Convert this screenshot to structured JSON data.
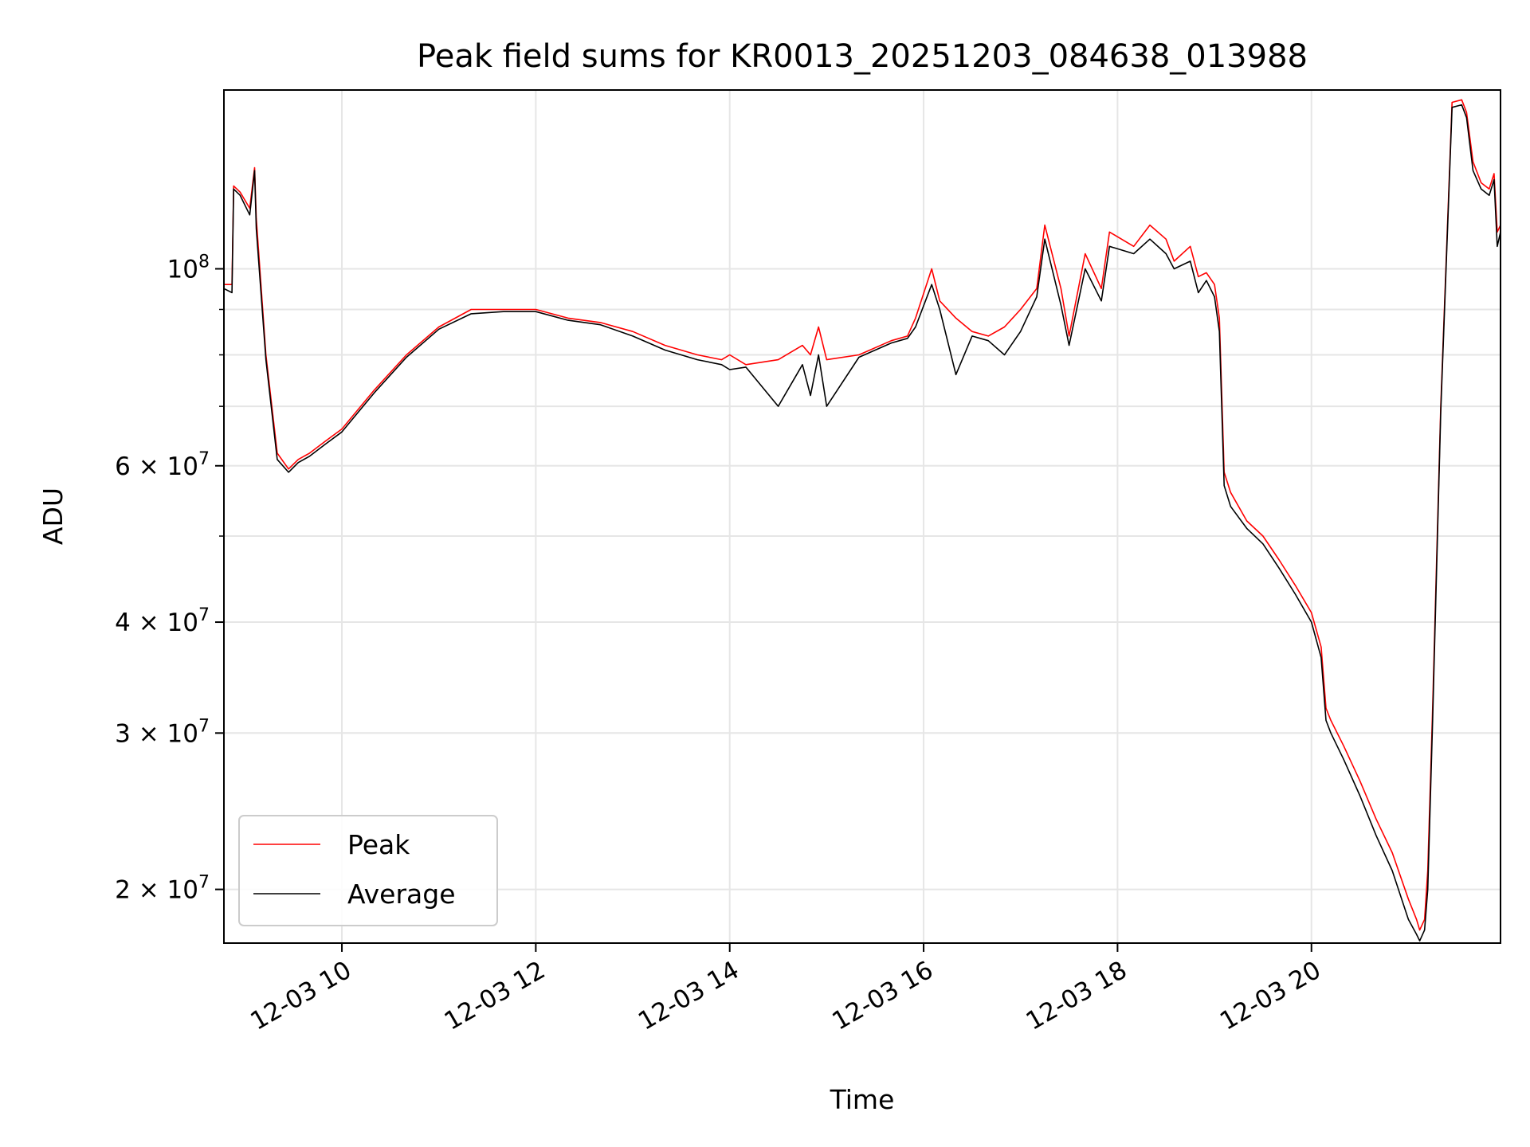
{
  "chart_data": {
    "type": "line",
    "title": "Peak field sums for KR0013_20251203_084638_013988",
    "xlabel": "Time",
    "ylabel": "ADU",
    "yscale": "log",
    "grid": true,
    "legend_position": "lower-left",
    "xlim": [
      "2025-12-03 08:47",
      "2025-12-03 21:57"
    ],
    "ylim": [
      17400000,
      159000000
    ],
    "x_ticks": [
      {
        "value": "2025-12-03 10:00",
        "label": "12-03 10"
      },
      {
        "value": "2025-12-03 12:00",
        "label": "12-03 12"
      },
      {
        "value": "2025-12-03 14:00",
        "label": "12-03 14"
      },
      {
        "value": "2025-12-03 16:00",
        "label": "12-03 16"
      },
      {
        "value": "2025-12-03 18:00",
        "label": "12-03 18"
      },
      {
        "value": "2025-12-03 20:00",
        "label": "12-03 20"
      }
    ],
    "y_ticks": [
      {
        "value": 20000000,
        "base": "2 × 10",
        "exp": "7"
      },
      {
        "value": 30000000,
        "base": "3 × 10",
        "exp": "7"
      },
      {
        "value": 40000000,
        "base": "4 × 10",
        "exp": "7"
      },
      {
        "value": 60000000,
        "base": "6 × 10",
        "exp": "7"
      },
      {
        "value": 100000000,
        "base": "10",
        "exp": "8"
      }
    ],
    "y_minor_ticks": [
      50000000,
      70000000,
      80000000,
      90000000
    ],
    "series": [
      {
        "name": "Peak",
        "color": "#ff0000",
        "x": [
          "2025-12-03 08:47",
          "2025-12-03 08:52",
          "2025-12-03 08:53",
          "2025-12-03 08:57",
          "2025-12-03 09:03",
          "2025-12-03 09:06",
          "2025-12-03 09:07",
          "2025-12-03 09:13",
          "2025-12-03 09:20",
          "2025-12-03 09:27",
          "2025-12-03 09:33",
          "2025-12-03 09:40",
          "2025-12-03 09:50",
          "2025-12-03 10:00",
          "2025-12-03 10:20",
          "2025-12-03 10:40",
          "2025-12-03 11:00",
          "2025-12-03 11:20",
          "2025-12-03 11:40",
          "2025-12-03 12:00",
          "2025-12-03 12:20",
          "2025-12-03 12:40",
          "2025-12-03 13:00",
          "2025-12-03 13:20",
          "2025-12-03 13:40",
          "2025-12-03 13:55",
          "2025-12-03 14:00",
          "2025-12-03 14:10",
          "2025-12-03 14:30",
          "2025-12-03 14:45",
          "2025-12-03 14:50",
          "2025-12-03 14:55",
          "2025-12-03 15:00",
          "2025-12-03 15:20",
          "2025-12-03 15:40",
          "2025-12-03 15:50",
          "2025-12-03 15:55",
          "2025-12-03 16:05",
          "2025-12-03 16:10",
          "2025-12-03 16:20",
          "2025-12-03 16:30",
          "2025-12-03 16:40",
          "2025-12-03 16:50",
          "2025-12-03 17:00",
          "2025-12-03 17:10",
          "2025-12-03 17:15",
          "2025-12-03 17:25",
          "2025-12-03 17:30",
          "2025-12-03 17:40",
          "2025-12-03 17:50",
          "2025-12-03 17:55",
          "2025-12-03 18:10",
          "2025-12-03 18:20",
          "2025-12-03 18:30",
          "2025-12-03 18:35",
          "2025-12-03 18:45",
          "2025-12-03 18:50",
          "2025-12-03 18:55",
          "2025-12-03 19:00",
          "2025-12-03 19:03",
          "2025-12-03 19:06",
          "2025-12-03 19:10",
          "2025-12-03 19:20",
          "2025-12-03 19:30",
          "2025-12-03 19:40",
          "2025-12-03 19:50",
          "2025-12-03 20:00",
          "2025-12-03 20:06",
          "2025-12-03 20:09",
          "2025-12-03 20:12",
          "2025-12-03 20:20",
          "2025-12-03 20:30",
          "2025-12-03 20:40",
          "2025-12-03 20:50",
          "2025-12-03 21:00",
          "2025-12-03 21:05",
          "2025-12-03 21:07",
          "2025-12-03 21:10",
          "2025-12-03 21:12",
          "2025-12-03 21:15",
          "2025-12-03 21:20",
          "2025-12-03 21:27",
          "2025-12-03 21:33",
          "2025-12-03 21:36",
          "2025-12-03 21:40",
          "2025-12-03 21:45",
          "2025-12-03 21:50",
          "2025-12-03 21:53",
          "2025-12-03 21:55",
          "2025-12-03 21:57"
        ],
        "values": [
          96000000,
          96000000,
          124000000,
          122000000,
          117000000,
          130000000,
          114000000,
          80000000,
          62000000,
          59500000,
          61000000,
          62000000,
          64000000,
          66000000,
          73000000,
          80000000,
          86000000,
          90000000,
          90000000,
          90000000,
          88000000,
          87000000,
          85000000,
          82000000,
          80000000,
          79000000,
          80000000,
          78000000,
          79000000,
          82000000,
          80000000,
          86000000,
          79000000,
          80000000,
          83000000,
          84000000,
          88000000,
          100000000,
          92000000,
          88000000,
          85000000,
          84000000,
          86000000,
          90000000,
          95000000,
          112000000,
          95000000,
          84000000,
          104000000,
          95000000,
          110000000,
          106000000,
          112000000,
          108000000,
          102000000,
          106000000,
          98000000,
          99000000,
          96000000,
          88000000,
          59000000,
          56000000,
          52000000,
          50000000,
          47000000,
          44000000,
          41000000,
          37500000,
          32000000,
          31000000,
          29000000,
          26500000,
          24000000,
          22000000,
          19500000,
          18500000,
          18000000,
          18500000,
          21000000,
          32000000,
          70000000,
          154000000,
          155000000,
          150000000,
          132000000,
          125000000,
          123000000,
          128000000,
          110000000,
          112000000
        ]
      },
      {
        "name": "Average",
        "color": "#000000",
        "x": [
          "2025-12-03 08:47",
          "2025-12-03 08:52",
          "2025-12-03 08:53",
          "2025-12-03 08:57",
          "2025-12-03 09:03",
          "2025-12-03 09:06",
          "2025-12-03 09:07",
          "2025-12-03 09:13",
          "2025-12-03 09:20",
          "2025-12-03 09:27",
          "2025-12-03 09:33",
          "2025-12-03 09:40",
          "2025-12-03 09:50",
          "2025-12-03 10:00",
          "2025-12-03 10:20",
          "2025-12-03 10:40",
          "2025-12-03 11:00",
          "2025-12-03 11:20",
          "2025-12-03 11:40",
          "2025-12-03 12:00",
          "2025-12-03 12:20",
          "2025-12-03 12:40",
          "2025-12-03 13:00",
          "2025-12-03 13:20",
          "2025-12-03 13:40",
          "2025-12-03 13:55",
          "2025-12-03 14:00",
          "2025-12-03 14:10",
          "2025-12-03 14:30",
          "2025-12-03 14:45",
          "2025-12-03 14:50",
          "2025-12-03 14:55",
          "2025-12-03 15:00",
          "2025-12-03 15:20",
          "2025-12-03 15:40",
          "2025-12-03 15:50",
          "2025-12-03 15:55",
          "2025-12-03 16:05",
          "2025-12-03 16:10",
          "2025-12-03 16:20",
          "2025-12-03 16:30",
          "2025-12-03 16:40",
          "2025-12-03 16:50",
          "2025-12-03 17:00",
          "2025-12-03 17:10",
          "2025-12-03 17:15",
          "2025-12-03 17:25",
          "2025-12-03 17:30",
          "2025-12-03 17:40",
          "2025-12-03 17:50",
          "2025-12-03 17:55",
          "2025-12-03 18:10",
          "2025-12-03 18:20",
          "2025-12-03 18:30",
          "2025-12-03 18:35",
          "2025-12-03 18:45",
          "2025-12-03 18:50",
          "2025-12-03 18:55",
          "2025-12-03 19:00",
          "2025-12-03 19:03",
          "2025-12-03 19:06",
          "2025-12-03 19:10",
          "2025-12-03 19:20",
          "2025-12-03 19:30",
          "2025-12-03 19:40",
          "2025-12-03 19:50",
          "2025-12-03 20:00",
          "2025-12-03 20:06",
          "2025-12-03 20:09",
          "2025-12-03 20:12",
          "2025-12-03 20:20",
          "2025-12-03 20:30",
          "2025-12-03 20:40",
          "2025-12-03 20:50",
          "2025-12-03 21:00",
          "2025-12-03 21:05",
          "2025-12-03 21:07",
          "2025-12-03 21:10",
          "2025-12-03 21:12",
          "2025-12-03 21:15",
          "2025-12-03 21:20",
          "2025-12-03 21:27",
          "2025-12-03 21:33",
          "2025-12-03 21:36",
          "2025-12-03 21:40",
          "2025-12-03 21:45",
          "2025-12-03 21:50",
          "2025-12-03 21:53",
          "2025-12-03 21:55",
          "2025-12-03 21:57"
        ],
        "values": [
          95000000,
          94000000,
          123000000,
          121000000,
          115000000,
          129000000,
          111000000,
          79000000,
          61000000,
          59000000,
          60500000,
          61500000,
          63500000,
          65500000,
          72500000,
          79500000,
          85500000,
          89000000,
          89500000,
          89500000,
          87500000,
          86500000,
          84000000,
          81000000,
          79000000,
          78000000,
          77000000,
          77500000,
          70000000,
          78000000,
          72000000,
          80000000,
          70000000,
          79500000,
          82500000,
          83500000,
          86000000,
          96000000,
          90000000,
          76000000,
          84000000,
          83000000,
          80000000,
          85000000,
          93000000,
          108000000,
          91000000,
          82000000,
          100000000,
          92000000,
          106000000,
          104000000,
          108000000,
          104000000,
          100000000,
          102000000,
          94000000,
          97000000,
          93000000,
          85000000,
          57000000,
          54000000,
          51000000,
          49000000,
          46000000,
          43000000,
          40000000,
          36500000,
          31000000,
          30000000,
          28000000,
          25500000,
          23000000,
          21000000,
          18500000,
          17800000,
          17500000,
          18000000,
          20000000,
          31000000,
          69000000,
          152000000,
          153000000,
          148000000,
          129000000,
          123000000,
          121000000,
          126000000,
          106000000,
          110000000
        ]
      }
    ]
  }
}
